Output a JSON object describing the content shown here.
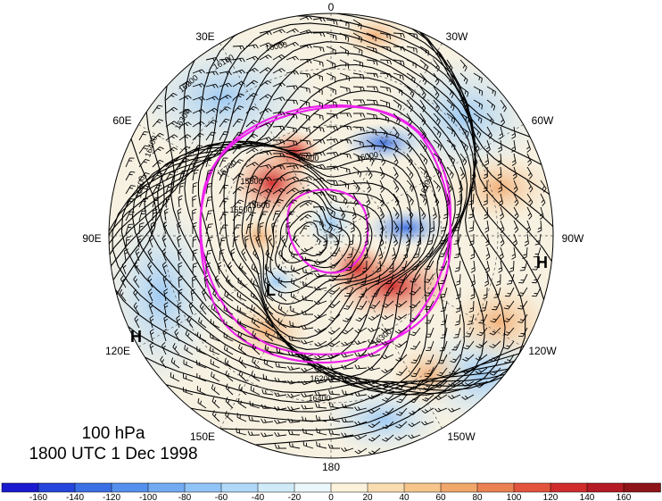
{
  "title": {
    "level": "100 hPa",
    "time": "1800 UTC 1 Dec 1998"
  },
  "longitude_labels": [
    "0",
    "30W",
    "60W",
    "90W",
    "120W",
    "150W",
    "180",
    "150E",
    "120E",
    "90E",
    "60E",
    "30E"
  ],
  "pressure_labels": {
    "high": "H",
    "low": "L"
  },
  "contour_labels": [
    "16400",
    "16300",
    "16200",
    "16100",
    "16000",
    "15900",
    "15800",
    "15700",
    "15600",
    "15500",
    "16500",
    "16400",
    "16300",
    "16200",
    "16100",
    "16000"
  ],
  "colorbar": {
    "ticks": [
      "-160",
      "-140",
      "-120",
      "-100",
      "-80",
      "-60",
      "-40",
      "-20",
      "0",
      "20",
      "40",
      "60",
      "80",
      "100",
      "120",
      "140",
      "160"
    ],
    "colors": [
      "#1a1ad0",
      "#2545dd",
      "#3b6fe6",
      "#5590ee",
      "#72abf2",
      "#91c4f6",
      "#b0d9f8",
      "#d0ebf8",
      "#ecf7fb",
      "#fbf2dc",
      "#f9ddb0",
      "#f6c58b",
      "#f1a66a",
      "#ec8152",
      "#e3543c",
      "#d02c2c",
      "#b41b24",
      "#8e1418"
    ]
  },
  "style": {
    "jet_contour_color": "#ee22ee",
    "contour_color": "#000000"
  }
}
